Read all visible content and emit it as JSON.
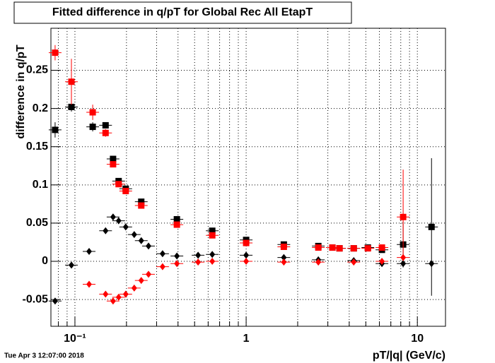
{
  "chart_data": {
    "type": "scatter",
    "title": "Fitted difference in q/pT for Global Rec All EtapT",
    "x_label": "pT/|q| (GeV/c)",
    "y_label": "difference in q/pT",
    "timestamp": "Tue Apr  3 12:07:00 2018",
    "log_x": true,
    "grid": true,
    "xlim": [
      0.0724,
      14.6
    ],
    "xticks": [
      {
        "value": 0.1,
        "label": "10⁻¹"
      },
      1,
      10
    ],
    "xminorticks": [
      0.08,
      0.09,
      0.2,
      0.3,
      0.4,
      0.5,
      0.6,
      0.7,
      0.8,
      0.9,
      2,
      3,
      4,
      5,
      6,
      7,
      8,
      9
    ],
    "ylim": [
      -0.085,
      0.305
    ],
    "yticks": [
      -0.05,
      0,
      0.05,
      0.1,
      0.15,
      0.2,
      0.25
    ],
    "series": [
      {
        "name": "black-squares",
        "color": "#000000",
        "marker": "square",
        "x": [
          0.0766,
          0.0954,
          0.127,
          0.151,
          0.167,
          0.18,
          0.198,
          0.244,
          0.394,
          0.634,
          1,
          1.66,
          2.64,
          3.19,
          3.51,
          4.25,
          5.14,
          6.21,
          8.26,
          12.1
        ],
        "values": [
          0.172,
          0.202,
          0.176,
          0.178,
          0.134,
          0.105,
          0.095,
          0.078,
          0.055,
          0.04,
          0.028,
          0.022,
          0.02,
          0.018,
          0.017,
          0.017,
          0.018,
          0.015,
          0.022,
          0.045
        ],
        "yerr": [
          0.01,
          0.006,
          0.006,
          0.004,
          0.003,
          0.002,
          0.002,
          0.001,
          0.001,
          0.001,
          0.001,
          0.001,
          0.001,
          0.001,
          0.001,
          0.001,
          0.002,
          0.003,
          0.03,
          0.09
        ]
      },
      {
        "name": "red-squares",
        "color": "#ff0000",
        "marker": "square",
        "x": [
          0.0766,
          0.0954,
          0.127,
          0.151,
          0.167,
          0.18,
          0.198,
          0.244,
          0.394,
          0.634,
          1,
          1.66,
          2.64,
          3.19,
          3.51,
          4.25,
          5.14,
          6.21,
          8.26
        ],
        "values": [
          0.273,
          0.235,
          0.195,
          0.168,
          0.127,
          0.101,
          0.092,
          0.073,
          0.048,
          0.034,
          0.024,
          0.019,
          0.018,
          0.018,
          0.017,
          0.017,
          0.017,
          0.018,
          0.058
        ],
        "yerr": [
          0.01,
          0.03,
          0.01,
          0.005,
          0.003,
          0.002,
          0.002,
          0.001,
          0.001,
          0.001,
          0.001,
          0.001,
          0.001,
          0.001,
          0.001,
          0.001,
          0.002,
          0.003,
          0.062
        ]
      },
      {
        "name": "black-diamonds",
        "color": "#000000",
        "marker": "diamond",
        "x": [
          0.0766,
          0.0954,
          0.121,
          0.151,
          0.167,
          0.18,
          0.198,
          0.222,
          0.244,
          0.269,
          0.325,
          0.394,
          0.524,
          0.634,
          1,
          1.66,
          2.64,
          4.25,
          6.21,
          8.26,
          12.1
        ],
        "values": [
          -0.052,
          -0.005,
          0.013,
          0.04,
          0.058,
          0.053,
          0.045,
          0.035,
          0.027,
          0.02,
          0.01,
          0.007,
          0.008,
          0.009,
          0.008,
          0.005,
          0.002,
          0.001,
          -0.003,
          -0.003,
          -0.003
        ]
      },
      {
        "name": "red-diamonds",
        "color": "#ff0000",
        "marker": "diamond",
        "x": [
          0.121,
          0.151,
          0.167,
          0.18,
          0.198,
          0.222,
          0.244,
          0.269,
          0.325,
          0.394,
          0.524,
          0.634,
          1,
          1.66,
          2.64,
          4.25,
          6.21,
          8.26
        ],
        "values": [
          -0.03,
          -0.043,
          -0.052,
          -0.047,
          -0.043,
          -0.035,
          -0.025,
          -0.017,
          -0.007,
          -0.003,
          -0.001,
          0,
          0,
          -0.001,
          -0.001,
          -0.001,
          0,
          0.005
        ]
      }
    ]
  }
}
